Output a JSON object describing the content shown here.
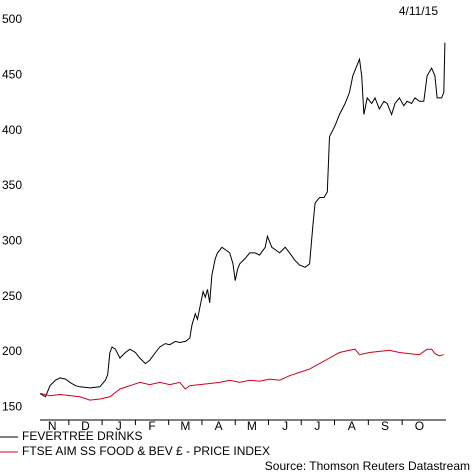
{
  "chart_data": {
    "type": "line",
    "date": "4/11/15",
    "source": "Source: Thomson Reuters Datastream",
    "xlim": [
      0,
      366
    ],
    "ylim": [
      144,
      500
    ],
    "yticks": [
      150,
      200,
      250,
      300,
      350,
      400,
      450,
      500
    ],
    "xticks": [
      {
        "value": 11,
        "label": "N"
      },
      {
        "value": 41,
        "label": "D"
      },
      {
        "value": 71,
        "label": "J"
      },
      {
        "value": 101,
        "label": "F"
      },
      {
        "value": 131,
        "label": "M"
      },
      {
        "value": 161,
        "label": "A"
      },
      {
        "value": 191,
        "label": "M"
      },
      {
        "value": 221,
        "label": "J"
      },
      {
        "value": 250,
        "label": "J"
      },
      {
        "value": 281,
        "label": "A"
      },
      {
        "value": 311,
        "label": "S"
      },
      {
        "value": 342,
        "label": "O"
      }
    ],
    "series": [
      {
        "name": "FEVERTREE DRINKS",
        "color": "#000000",
        "x": [
          0,
          5,
          9,
          14,
          18,
          23,
          27,
          32,
          36,
          45,
          54,
          59,
          61,
          63,
          65,
          68,
          72,
          77,
          81,
          86,
          90,
          95,
          99,
          104,
          108,
          113,
          117,
          122,
          126,
          131,
          135,
          137,
          140,
          142,
          144,
          147,
          149,
          151,
          153,
          155,
          158,
          160,
          164,
          167,
          171,
          174,
          176,
          178,
          180,
          185,
          189,
          194,
          198,
          203,
          205,
          209,
          212,
          216,
          221,
          225,
          230,
          234,
          239,
          243,
          246,
          248,
          252,
          256,
          259,
          261,
          266,
          270,
          275,
          279,
          282,
          284,
          288,
          290,
          292,
          295,
          299,
          302,
          306,
          310,
          313,
          317,
          320,
          324,
          328,
          331,
          335,
          338,
          342,
          346,
          349,
          353,
          356,
          358,
          362,
          364,
          365
        ],
        "values": [
          168,
          165,
          175,
          180,
          182,
          181,
          178,
          175,
          174,
          173,
          174,
          180,
          185,
          205,
          210,
          208,
          200,
          205,
          208,
          205,
          200,
          195,
          198,
          205,
          210,
          213,
          212,
          215,
          214,
          215,
          218,
          230,
          240,
          235,
          245,
          260,
          255,
          262,
          250,
          275,
          290,
          295,
          300,
          298,
          295,
          285,
          270,
          280,
          285,
          290,
          295,
          295,
          293,
          300,
          310,
          300,
          298,
          295,
          300,
          295,
          288,
          284,
          282,
          285,
          320,
          340,
          345,
          345,
          350,
          400,
          410,
          420,
          430,
          440,
          455,
          460,
          470,
          455,
          420,
          435,
          430,
          435,
          425,
          432,
          430,
          420,
          430,
          435,
          428,
          432,
          430,
          435,
          432,
          432,
          455,
          462,
          455,
          435,
          435,
          440,
          485
        ]
      },
      {
        "name": "FTSE AIM SS FOOD & BEV £ - PRICE INDEX",
        "color": "#d0021b",
        "x": [
          0,
          9,
          18,
          36,
          45,
          54,
          63,
          72,
          81,
          90,
          99,
          108,
          117,
          126,
          131,
          135,
          144,
          153,
          162,
          171,
          180,
          189,
          198,
          207,
          216,
          225,
          234,
          243,
          252,
          261,
          270,
          279,
          284,
          288,
          297,
          306,
          315,
          324,
          333,
          342,
          349,
          353,
          356,
          360,
          364
        ],
        "values": [
          168,
          166,
          167,
          165,
          162,
          163,
          165,
          172,
          175,
          178,
          176,
          178,
          176,
          178,
          172,
          175,
          176,
          177,
          178,
          180,
          178,
          180,
          179,
          181,
          180,
          184,
          187,
          190,
          195,
          200,
          205,
          207,
          208,
          203,
          205,
          206,
          207,
          205,
          204,
          203,
          208,
          208,
          204,
          202,
          203
        ]
      }
    ]
  }
}
